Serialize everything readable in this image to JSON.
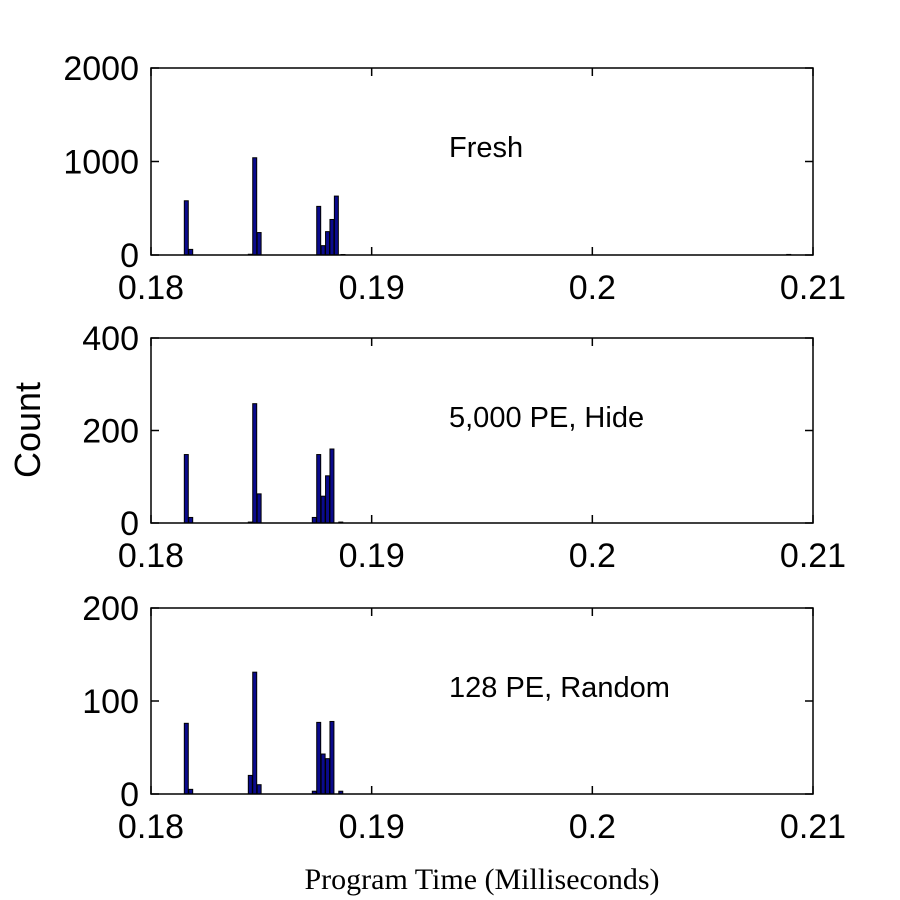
{
  "chart_data": {
    "type": "bar",
    "ylabel": "Count",
    "xlabel": "Program Time (Milliseconds)",
    "colors": {
      "bar_fill": "#0a0a8c",
      "bar_edge": "#000000",
      "axes": "#000000",
      "background": "#ffffff"
    },
    "grid": false,
    "legend": "none",
    "panels": [
      {
        "annotation": "Fresh",
        "xlim": [
          0.18,
          0.21
        ],
        "ylim": [
          0,
          2000
        ],
        "xticks": [
          0.18,
          0.19,
          0.2,
          0.21
        ],
        "xtick_labels": [
          "0.18",
          "0.19",
          "0.2",
          "0.21"
        ],
        "yticks": [
          0,
          1000,
          2000
        ],
        "ytick_labels": [
          "0",
          "1000",
          "2000"
        ],
        "x": [
          0.1816,
          0.1818,
          0.1845,
          0.1847,
          0.1849,
          0.1876,
          0.1878,
          0.188,
          0.1882,
          0.1884,
          0.1887,
          0.2089
        ],
        "values": [
          580,
          60,
          8,
          1040,
          240,
          520,
          100,
          250,
          380,
          630,
          5,
          6
        ]
      },
      {
        "annotation": "5,000 PE, Hide",
        "xlim": [
          0.18,
          0.21
        ],
        "ylim": [
          0,
          400
        ],
        "xticks": [
          0.18,
          0.19,
          0.2,
          0.21
        ],
        "xtick_labels": [
          "0.18",
          "0.19",
          "0.2",
          "0.21"
        ],
        "yticks": [
          0,
          200,
          400
        ],
        "ytick_labels": [
          "0",
          "200",
          "400"
        ],
        "x": [
          0.1816,
          0.1818,
          0.1845,
          0.1847,
          0.1849,
          0.1874,
          0.1876,
          0.1878,
          0.188,
          0.1882,
          0.1886
        ],
        "values": [
          148,
          12,
          2,
          258,
          63,
          12,
          148,
          58,
          102,
          160,
          2
        ]
      },
      {
        "annotation": "128 PE, Random",
        "xlim": [
          0.18,
          0.21
        ],
        "ylim": [
          0,
          200
        ],
        "xticks": [
          0.18,
          0.19,
          0.2,
          0.21
        ],
        "xtick_labels": [
          "0.18",
          "0.19",
          "0.2",
          "0.21"
        ],
        "yticks": [
          0,
          100,
          200
        ],
        "ytick_labels": [
          "0",
          "100",
          "200"
        ],
        "x": [
          0.1816,
          0.1818,
          0.1845,
          0.1847,
          0.1849,
          0.1874,
          0.1876,
          0.1878,
          0.188,
          0.1882,
          0.1886
        ],
        "values": [
          76,
          5,
          20,
          131,
          10,
          3,
          77,
          43,
          38,
          78,
          3
        ]
      }
    ]
  }
}
